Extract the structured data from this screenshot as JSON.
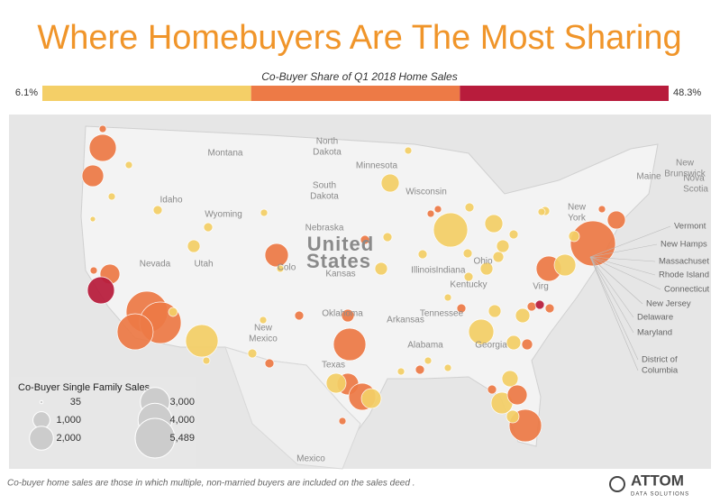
{
  "header": {
    "title": "Where Homebuyers Are The Most Sharing"
  },
  "color_legend": {
    "title": "Co-Buyer Share of Q1 2018 Home Sales",
    "min": {
      "value": 6.1,
      "label": "6.1%"
    },
    "max": {
      "value": 48.3,
      "label": "48.3%"
    },
    "colors": [
      "#f4cf67",
      "#ed7a46",
      "#b81c3c"
    ]
  },
  "size_legend": {
    "title": "Co-Buyer Single Family Sales",
    "items": [
      {
        "value": 35,
        "label": "35"
      },
      {
        "value": 1000,
        "label": "1,000"
      },
      {
        "value": 2000,
        "label": "2,000"
      },
      {
        "value": 3000,
        "label": "3,000"
      },
      {
        "value": 4000,
        "label": "4,000"
      },
      {
        "value": 5489,
        "label": "5,489"
      }
    ]
  },
  "map": {
    "labels": [
      "Montana",
      "North",
      "Dakota",
      "South",
      "Dakota",
      "Minnesota",
      "Wisconsin",
      "Wyoming",
      "Idaho",
      "Nebraska",
      "Nevada",
      "Utah",
      "Colo",
      "Kansas",
      "Illinois",
      "Indiana",
      "Ohio",
      "Kentucky",
      "Tennessee",
      "Virg",
      "New",
      "York",
      "Maine",
      "New",
      "Brunswick",
      "Nova",
      "Scotia",
      "Oklahoma",
      "Arkansas",
      "Texas",
      "New",
      "Mexico",
      "Alabama",
      "Georgia",
      "Mexico",
      "United",
      "States"
    ],
    "callouts": [
      "Vermont",
      "New Hamps",
      "Massachuset",
      "Rhode Island",
      "Connecticut",
      "New Jersey",
      "Delaware",
      "Maryland",
      "District of",
      "Columbia"
    ]
  },
  "footer": {
    "note": "Co-buyer home sales are those in which multiple, non-married buyers are included on the sales deed .",
    "logo": "ATTOM",
    "logo_sub": "DATA SOLUTIONS"
  }
}
